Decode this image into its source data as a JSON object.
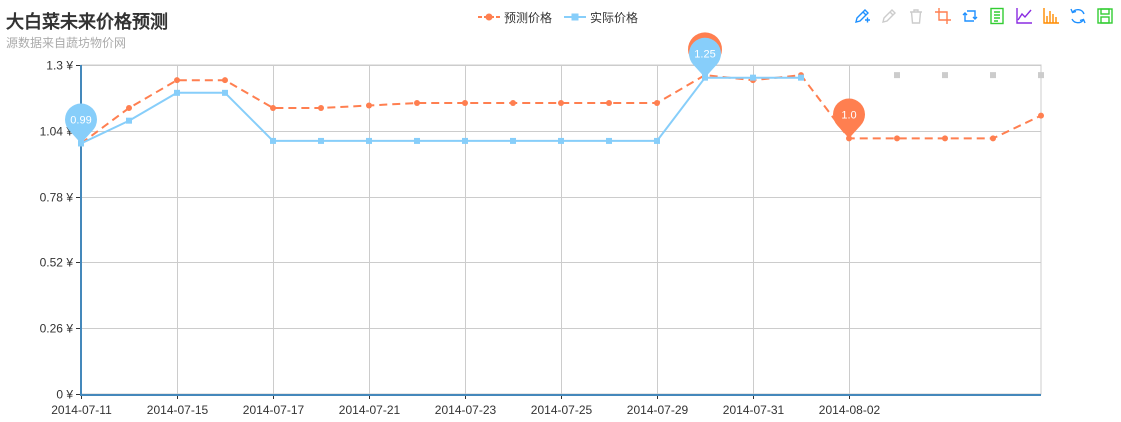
{
  "title": "大白菜未来价格预测",
  "subtitle": "源数据来自蔬坊物价网",
  "legend": [
    {
      "name": "预测价格",
      "color": "#ff7f50"
    },
    {
      "name": "实际价格",
      "color": "#87cefa"
    }
  ],
  "toolbox": [
    {
      "icon": "mark-pen-icon",
      "color": "#1e90ff"
    },
    {
      "icon": "mark-undo-icon",
      "color": "#cccccc"
    },
    {
      "icon": "mark-clear-icon",
      "color": "#cccccc"
    },
    {
      "icon": "data-zoom-icon",
      "color": "#ff7f50"
    },
    {
      "icon": "data-zoom-reset-icon",
      "color": "#1e90ff"
    },
    {
      "icon": "data-view-icon",
      "color": "#32cd32"
    },
    {
      "icon": "line-chart-icon",
      "color": "#8a2be2"
    },
    {
      "icon": "bar-chart-icon",
      "color": "#ff8c00"
    },
    {
      "icon": "restore-icon",
      "color": "#1e90ff"
    },
    {
      "icon": "save-image-icon",
      "color": "#32cd32"
    }
  ],
  "chart_data": {
    "type": "line",
    "ylim": [
      0,
      1.3
    ],
    "yticks": [
      0,
      0.26,
      0.52,
      0.78,
      1.04,
      1.3
    ],
    "ytick_labels": [
      "0 ¥",
      "0.26 ¥",
      "0.52 ¥",
      "0.78 ¥",
      "1.04 ¥",
      "1.3 ¥"
    ],
    "x_labels": [
      "2014-07-11",
      "2014-07-15",
      "2014-07-17",
      "2014-07-21",
      "2014-07-23",
      "2014-07-25",
      "2014-07-29",
      "2014-07-31",
      "2014-08-02"
    ],
    "grid": true,
    "series": [
      {
        "name": "预测价格",
        "color": "#ff7f50",
        "dashed": true,
        "values": [
          0.99,
          1.13,
          1.24,
          1.24,
          1.13,
          1.13,
          1.14,
          1.15,
          1.15,
          1.15,
          1.15,
          1.15,
          1.15,
          1.26,
          1.24,
          1.26,
          1.01,
          1.01,
          1.01,
          1.01,
          1.1
        ]
      },
      {
        "name": "实际价格",
        "color": "#87cefa",
        "dashed": false,
        "values": [
          0.99,
          1.08,
          1.19,
          1.19,
          1.0,
          1.0,
          1.0,
          1.0,
          1.0,
          1.0,
          1.0,
          1.0,
          1.0,
          1.25,
          1.25,
          1.25,
          null,
          null,
          null,
          null,
          null
        ]
      }
    ],
    "extra_points": [
      1.26,
      1.26,
      1.26,
      1.26
    ],
    "markpoints": [
      {
        "series": "实际价格",
        "index": 0,
        "label": "0.99",
        "color": "#87cefa"
      },
      {
        "series": "实际价格",
        "index": 13,
        "label": "1.25",
        "color": "#87cefa"
      },
      {
        "series": "预测价格",
        "index": 16,
        "label": "1.0",
        "color": "#ff7f50"
      }
    ]
  }
}
